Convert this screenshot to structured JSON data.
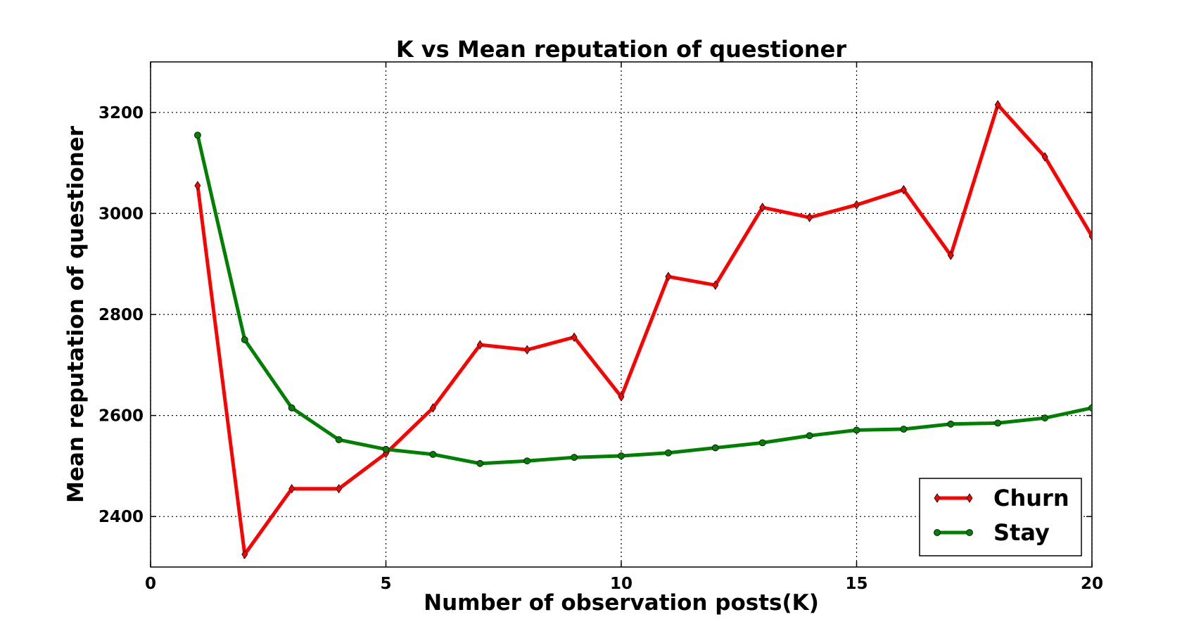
{
  "chart_data": {
    "type": "line",
    "title": "K vs Mean reputation of questioner",
    "xlabel": "Number of observation posts(K)",
    "ylabel": "Mean reputation of questioner",
    "xlim": [
      0,
      20
    ],
    "ylim": [
      2300,
      3300
    ],
    "xticks": [
      0,
      5,
      10,
      15,
      20
    ],
    "yticks": [
      2400,
      2600,
      2800,
      3000,
      3200
    ],
    "grid": true,
    "legend_position": "lower-right",
    "x": [
      1,
      2,
      3,
      4,
      5,
      6,
      7,
      8,
      9,
      10,
      11,
      12,
      13,
      14,
      15,
      16,
      17,
      18,
      19,
      20
    ],
    "series": [
      {
        "name": "Churn",
        "color": "#ff0000",
        "marker": "diamond",
        "values": [
          3055,
          2325,
          2455,
          2455,
          2525,
          2615,
          2740,
          2730,
          2755,
          2637,
          2875,
          2858,
          3012,
          2992,
          3017,
          3047,
          2917,
          3215,
          3112,
          2955
        ]
      },
      {
        "name": "Stay",
        "color": "#008000",
        "marker": "circle",
        "values": [
          3155,
          2750,
          2615,
          2552,
          2533,
          2523,
          2505,
          2510,
          2517,
          2520,
          2526,
          2536,
          2546,
          2560,
          2571,
          2573,
          2583,
          2585,
          2595,
          2615
        ]
      }
    ]
  }
}
